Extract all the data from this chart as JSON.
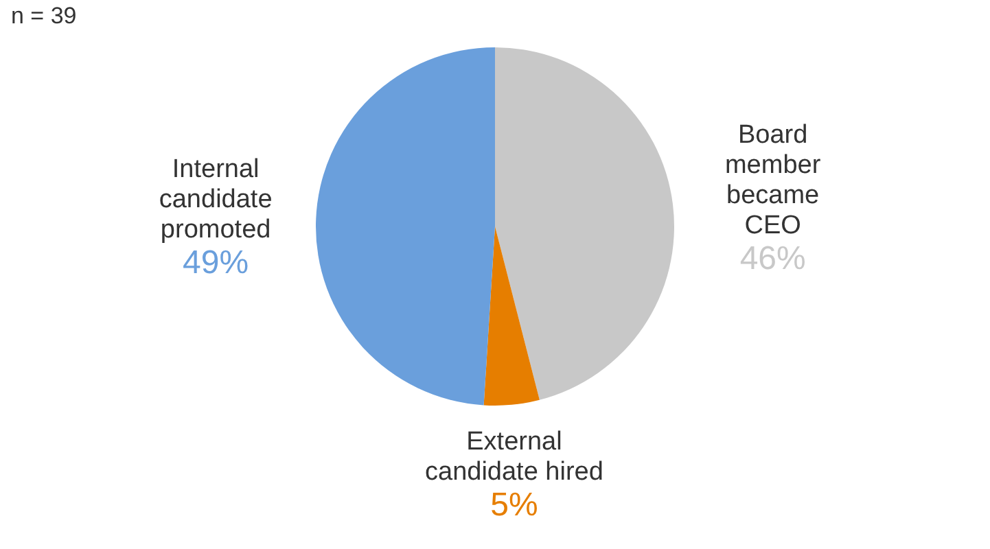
{
  "chart_data": {
    "type": "pie",
    "categories": [
      "Board member became CEO",
      "External candidate hired",
      "Internal candidate promoted"
    ],
    "values": [
      46,
      5,
      49
    ],
    "colors": [
      "#c8c8c8",
      "#e67e00",
      "#6a9fdc"
    ],
    "value_labels": [
      "46%",
      "5%",
      "49%"
    ],
    "annotations": [
      "n = 39"
    ],
    "legend": false
  }
}
